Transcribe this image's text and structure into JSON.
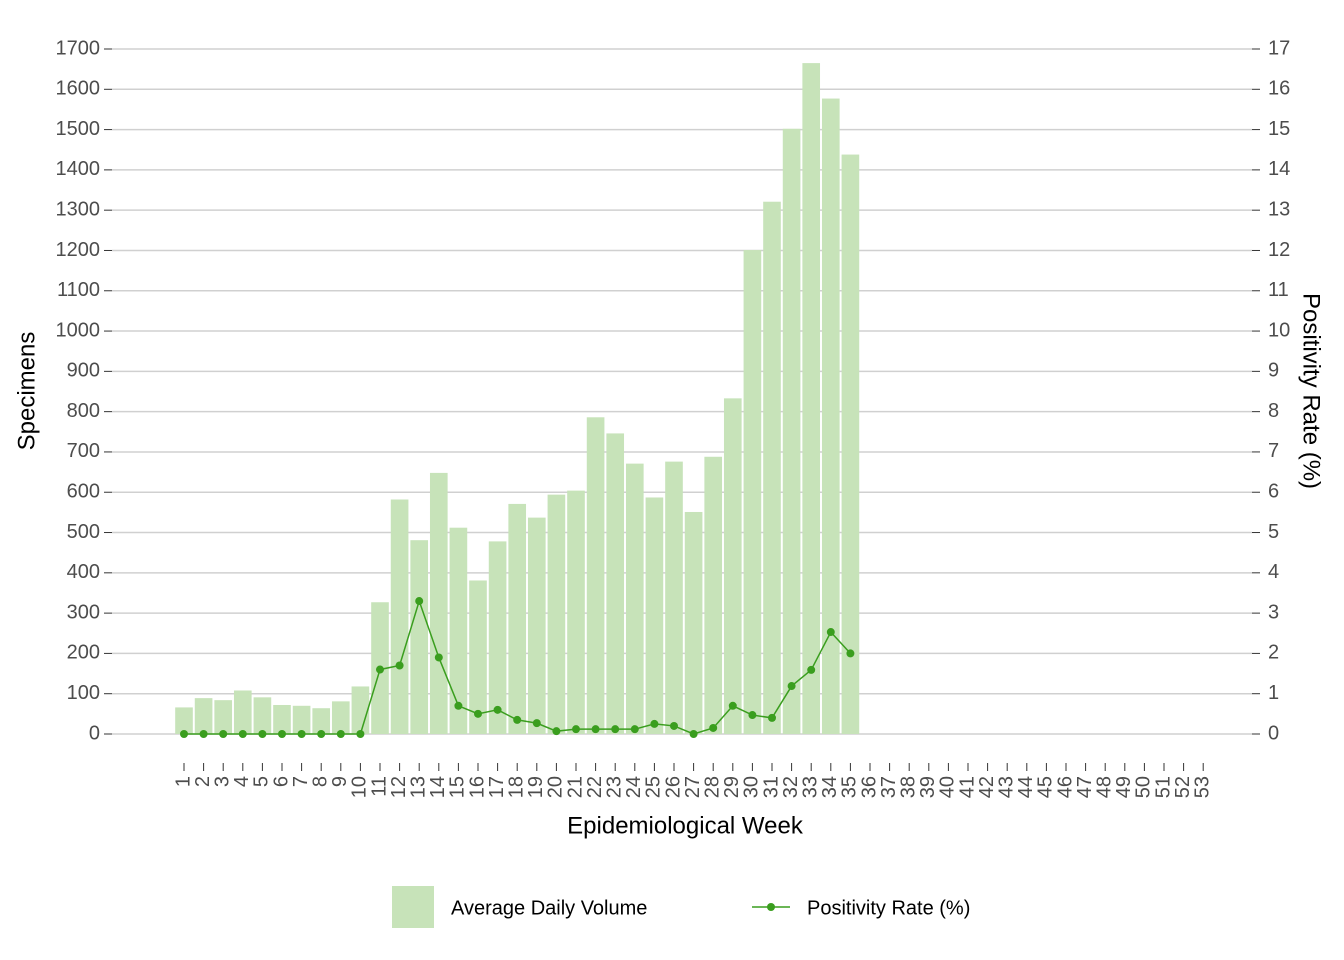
{
  "chart_data": {
    "type": "bar_line",
    "x_label": "Epidemiological Week",
    "y_label": "Specimens",
    "y2_label": "Positivity Rate (%)",
    "categories": [
      1,
      2,
      3,
      4,
      5,
      6,
      7,
      8,
      9,
      10,
      11,
      12,
      13,
      14,
      15,
      16,
      17,
      18,
      19,
      20,
      21,
      22,
      23,
      24,
      25,
      26,
      27,
      28,
      29,
      30,
      31,
      32,
      33,
      34,
      35,
      36,
      37,
      38,
      39,
      40,
      41,
      42,
      43,
      44,
      45,
      46,
      47,
      48,
      49,
      50,
      51,
      52,
      53
    ],
    "series": [
      {
        "name": "Average Daily Volume",
        "type": "bar",
        "color": "#c7e3b9",
        "values": [
          66,
          89,
          84,
          108,
          91,
          72,
          70,
          64,
          81,
          118,
          327,
          582,
          481,
          648,
          512,
          381,
          478,
          571,
          537,
          594,
          604,
          786,
          746,
          671,
          587,
          676,
          551,
          688,
          833,
          1201,
          1321,
          1502,
          1665,
          1577,
          1438,
          null,
          null,
          null,
          null,
          null,
          null,
          null,
          null,
          null,
          null,
          null,
          null,
          null,
          null,
          null,
          null,
          null,
          null
        ]
      },
      {
        "name": "Positivity Rate (%)",
        "type": "line",
        "axis": "y2",
        "color": "#3a9e1e",
        "values": [
          0,
          0,
          0,
          0,
          0,
          0,
          0,
          0,
          0,
          0,
          1.6,
          1.7,
          3.3,
          1.9,
          0.7,
          0.5,
          0.6,
          0.35,
          0.27,
          0.07,
          0.12,
          0.12,
          0.12,
          0.12,
          0.25,
          0.2,
          0,
          0.15,
          0.7,
          0.47,
          0.4,
          1.19,
          1.59,
          2.53,
          2.0,
          null,
          null,
          null,
          null,
          null,
          null,
          null,
          null,
          null,
          null,
          null,
          null,
          null,
          null,
          null,
          null,
          null,
          null
        ]
      }
    ],
    "ylim": [
      0,
      1700
    ],
    "yticks": [
      0,
      100,
      200,
      300,
      400,
      500,
      600,
      700,
      800,
      900,
      1000,
      1100,
      1200,
      1300,
      1400,
      1500,
      1600,
      1700
    ],
    "y2lim": [
      0,
      17
    ],
    "y2ticks": [
      0,
      1,
      2,
      3,
      4,
      5,
      6,
      7,
      8,
      9,
      10,
      11,
      12,
      13,
      14,
      15,
      16,
      17
    ],
    "grid": true,
    "legend": "bottom"
  }
}
